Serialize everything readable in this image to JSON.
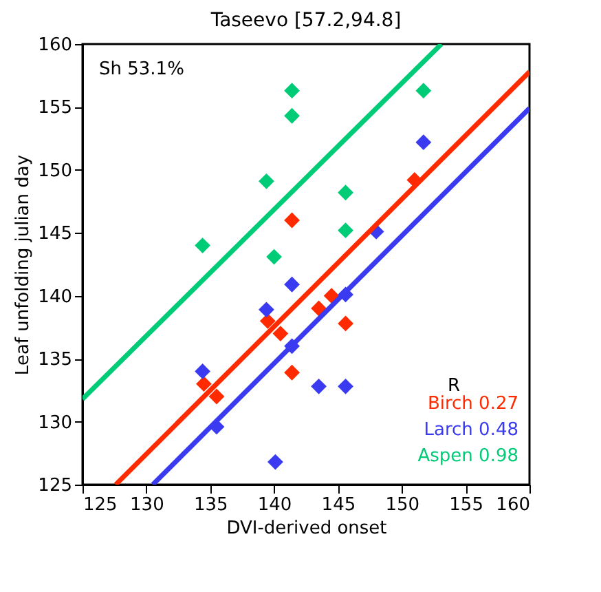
{
  "chart_data": {
    "type": "scatter",
    "title": "Taseevo [57.2,94.8]",
    "xlabel": "DVI-derived onset",
    "ylabel": "Leaf unfolding julian day",
    "xlim": [
      125,
      160
    ],
    "ylim": [
      125,
      160
    ],
    "xticks": [
      125,
      130,
      135,
      140,
      145,
      150,
      155,
      160
    ],
    "yticks": [
      125,
      130,
      135,
      140,
      145,
      150,
      155,
      160
    ],
    "grid": false,
    "marker": "diamond",
    "legend": "bottom right",
    "legend_title": "R",
    "annotations": [
      "Sh 53.1%"
    ],
    "series": [
      {
        "name": "Birch 0.27",
        "color": "#ff2a00",
        "x": [
          151.0,
          141.4,
          143.5,
          144.5,
          145.6,
          139.5,
          140.5,
          141.4,
          134.5,
          135.5
        ],
        "values": [
          149.2,
          146.0,
          139.0,
          140.0,
          137.8,
          138.0,
          137.0,
          133.9,
          133.0,
          132.0
        ]
      },
      {
        "name": "Larch 0.48",
        "color": "#3a3af0",
        "x": [
          151.7,
          148.0,
          141.4,
          139.4,
          145.6,
          141.4,
          143.5,
          145.6,
          134.4,
          135.5,
          140.1
        ],
        "values": [
          152.2,
          145.1,
          140.9,
          138.9,
          140.1,
          136.0,
          132.8,
          132.8,
          134.0,
          129.6,
          126.8
        ]
      },
      {
        "name": "Aspen 0.98",
        "color": "#00cc77",
        "x": [
          141.4,
          141.4,
          151.7,
          139.4,
          145.6,
          145.6,
          134.4,
          140.0
        ],
        "values": [
          156.3,
          154.3,
          156.3,
          149.1,
          148.2,
          145.2,
          144.0,
          143.1
        ]
      },
      {
        "type": "line",
        "marker": "none",
        "color": "#ff2a00",
        "x": [
          127.6,
          160
        ],
        "values": [
          125,
          157.8
        ]
      },
      {
        "type": "line",
        "marker": "none",
        "color": "#3a3af0",
        "x": [
          130.5,
          160
        ],
        "values": [
          125,
          154.9
        ]
      },
      {
        "type": "line",
        "marker": "none",
        "color": "#00cc77",
        "x": [
          125,
          153.1
        ],
        "values": [
          131.8,
          160
        ]
      }
    ]
  }
}
